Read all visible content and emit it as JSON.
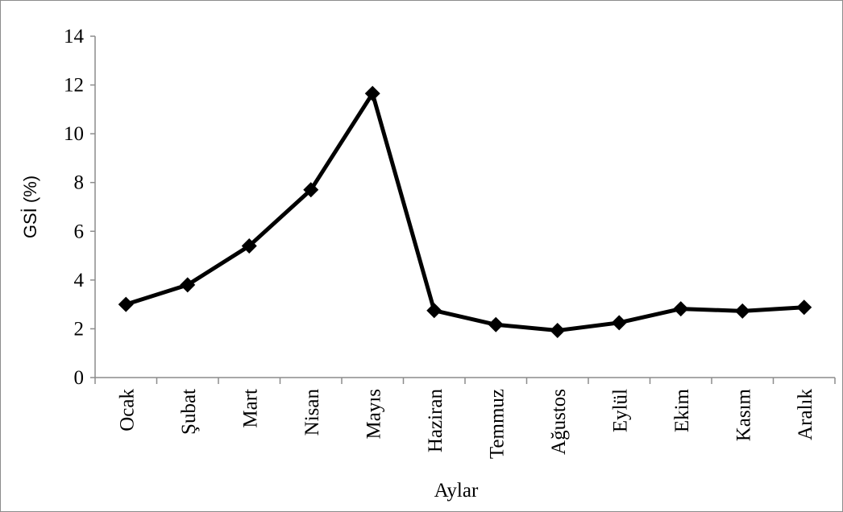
{
  "chart_data": {
    "type": "line",
    "title": "",
    "xlabel": "Aylar",
    "ylabel": "GSİ (%)",
    "ylim": [
      0,
      14
    ],
    "yticks": [
      0,
      2,
      4,
      6,
      8,
      10,
      12,
      14
    ],
    "ytick_labels": [
      "0",
      "2",
      "4",
      "6",
      "8",
      "10",
      "12",
      "14"
    ],
    "categories": [
      "Ocak",
      "Şubat",
      "Mart",
      "Nisan",
      "Mayıs",
      "Haziran",
      "Temmuz",
      "Ağustos",
      "Eylül",
      "Ekim",
      "Kasım",
      "Aralık"
    ],
    "series": [
      {
        "values": [
          3.0,
          3.8,
          5.4,
          7.7,
          11.65,
          2.75,
          2.17,
          1.93,
          2.25,
          2.82,
          2.73,
          2.88
        ],
        "color": "#000000",
        "marker": "diamond"
      }
    ],
    "grid": false,
    "legend": "none"
  }
}
